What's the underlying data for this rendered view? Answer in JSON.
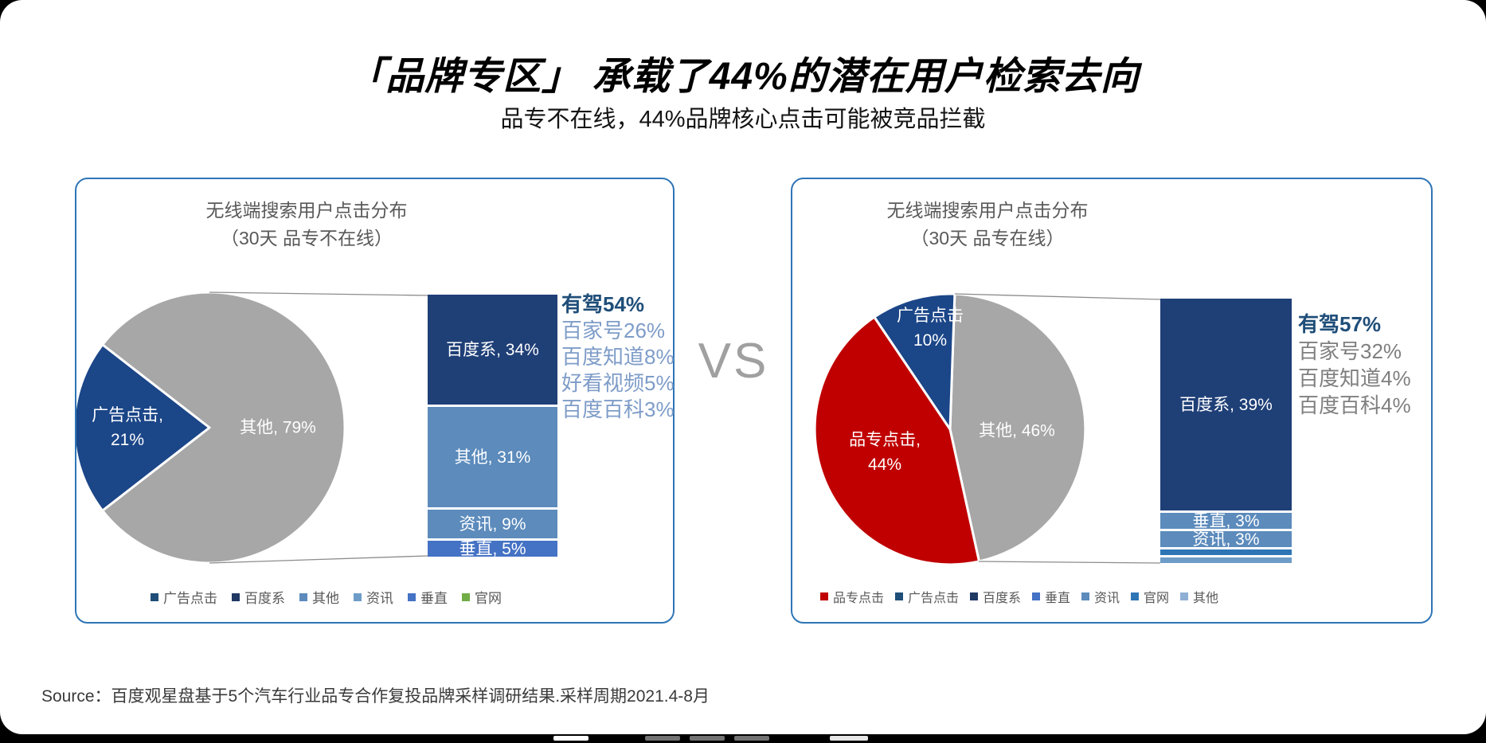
{
  "header": {
    "title": "「品牌专区」 承载了44%的潜在用户检索去向",
    "subtitle": "品专不在线，44%品牌核心点击可能被竞品拦截"
  },
  "vs_label": "VS",
  "source_note": "Source：百度观星盘基于5个汽车行业品专合作复投品牌采样调研结果.采样周期2021.4-8月",
  "panel_border_color": "#2E75B6",
  "chart_data": [
    {
      "type": "pie",
      "variant": "bar-of-pie",
      "title_line1": "无线端搜索用户点击分布",
      "title_line2": "（30天 品专不在线）",
      "pie_slices": [
        {
          "name": "其他",
          "value": 79,
          "color": "#A7A7A7",
          "label_lines": [
            "其他, 79%"
          ]
        },
        {
          "name": "广告点击",
          "value": 21,
          "color": "#1B4688",
          "label_lines": [
            "广告点击,",
            "21%"
          ]
        }
      ],
      "bar_segments": [
        {
          "name": "百度系",
          "value": 34,
          "label": "百度系, 34%",
          "color": "#1F3F77"
        },
        {
          "name": "其他",
          "value": 31,
          "label": "其他, 31%",
          "color": "#5C8BBC"
        },
        {
          "name": "资讯",
          "value": 9,
          "label": "资讯, 9%",
          "color": "#5C8BBC"
        },
        {
          "name": "垂直",
          "value": 5,
          "label": "垂直, 5%",
          "color": "#4472C4"
        }
      ],
      "annotations": [
        {
          "text": "有驾54%",
          "emphasis": true
        },
        {
          "text": "百家号26%"
        },
        {
          "text": "百度知道8%"
        },
        {
          "text": "好看视频5%"
        },
        {
          "text": "百度百科3%"
        }
      ],
      "annotation_emphasis_color": "#1F4E79",
      "annotation_secondary_color": "#7E9CC8",
      "legend": [
        {
          "label": "广告点击",
          "color": "#1F4E79"
        },
        {
          "label": "百度系",
          "color": "#1F3864"
        },
        {
          "label": "其他",
          "color": "#5C8BBC"
        },
        {
          "label": "资讯",
          "color": "#6D9CC8"
        },
        {
          "label": "垂直",
          "color": "#4472C4"
        },
        {
          "label": "官网",
          "color": "#70AD47"
        }
      ]
    },
    {
      "type": "pie",
      "variant": "bar-of-pie",
      "title_line1": "无线端搜索用户点击分布",
      "title_line2": "（30天 品专在线）",
      "pie_slices": [
        {
          "name": "其他",
          "value": 46,
          "color": "#A7A7A7",
          "label_lines": [
            "其他, 46%"
          ]
        },
        {
          "name": "品专点击",
          "value": 44,
          "color": "#C00000",
          "label_lines": [
            "品专点击,",
            "44%"
          ]
        },
        {
          "name": "广告点击",
          "value": 10,
          "color": "#1B4688",
          "label_lines": [
            "广告点击",
            "10%"
          ]
        }
      ],
      "bar_segments": [
        {
          "name": "百度系",
          "value": 39,
          "label": "百度系, 39%",
          "color": "#1F3F77"
        },
        {
          "name": "垂直",
          "value": 3,
          "label": "垂直, 3%",
          "color": "#5C8BBC"
        },
        {
          "name": "资讯",
          "value": 3,
          "label": "资讯, 3%",
          "color": "#5C8BBC"
        },
        {
          "name": "官网",
          "value": 1,
          "label": "",
          "color": "#2E75B6"
        },
        {
          "name": "其他",
          "value": 1,
          "label": "",
          "color": "#6D9CC8"
        }
      ],
      "annotations": [
        {
          "text": "有驾57%",
          "emphasis": true
        },
        {
          "text": "百家号32%"
        },
        {
          "text": "百度知道4%"
        },
        {
          "text": "百度百科4%"
        }
      ],
      "annotation_emphasis_color": "#1F4E79",
      "annotation_secondary_color": "#7F7F7F",
      "legend": [
        {
          "label": "品专点击",
          "color": "#C00000"
        },
        {
          "label": "广告点击",
          "color": "#1F4E79"
        },
        {
          "label": "百度系",
          "color": "#1F3864"
        },
        {
          "label": "垂直",
          "color": "#4472C4"
        },
        {
          "label": "资讯",
          "color": "#5C8BBC"
        },
        {
          "label": "官网",
          "color": "#2E75B6"
        },
        {
          "label": "其他",
          "color": "#8FAFD4"
        }
      ]
    }
  ]
}
